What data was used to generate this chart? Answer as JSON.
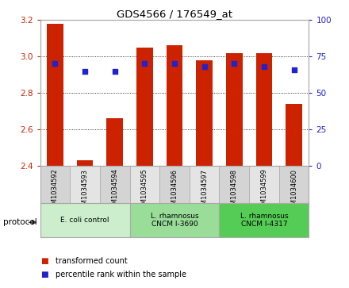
{
  "title": "GDS4566 / 176549_at",
  "samples": [
    "GSM1034592",
    "GSM1034593",
    "GSM1034594",
    "GSM1034595",
    "GSM1034596",
    "GSM1034597",
    "GSM1034598",
    "GSM1034599",
    "GSM1034600"
  ],
  "transformed_count": [
    3.18,
    2.43,
    2.66,
    3.05,
    3.06,
    2.98,
    3.02,
    3.02,
    2.74
  ],
  "percentile_rank": [
    70,
    65,
    65,
    70,
    70,
    68,
    70,
    68,
    66
  ],
  "ylim_left": [
    2.4,
    3.2
  ],
  "ylim_right": [
    0,
    100
  ],
  "yticks_left": [
    2.4,
    2.6,
    2.8,
    3.0,
    3.2
  ],
  "yticks_right": [
    0,
    25,
    50,
    75,
    100
  ],
  "bar_color": "#cc2200",
  "dot_color": "#2222cc",
  "bar_width": 0.55,
  "groups": [
    {
      "label": "E. coli control",
      "samples": [
        0,
        1,
        2
      ],
      "color": "#cceecc"
    },
    {
      "label": "L. rhamnosus\nCNCM I-3690",
      "samples": [
        3,
        4,
        5
      ],
      "color": "#99dd99"
    },
    {
      "label": "L. rhamnosus\nCNCM I-4317",
      "samples": [
        6,
        7,
        8
      ],
      "color": "#55cc55"
    }
  ],
  "legend_items": [
    {
      "label": "transformed count",
      "color": "#cc2200"
    },
    {
      "label": "percentile rank within the sample",
      "color": "#2222cc"
    }
  ],
  "protocol_label": "protocol",
  "sample_bg_even": "#d4d4d4",
  "sample_bg_odd": "#e4e4e4",
  "plot_bg": "#ffffff",
  "ylabel_left_color": "#cc2200",
  "ylabel_right_color": "#2222cc"
}
